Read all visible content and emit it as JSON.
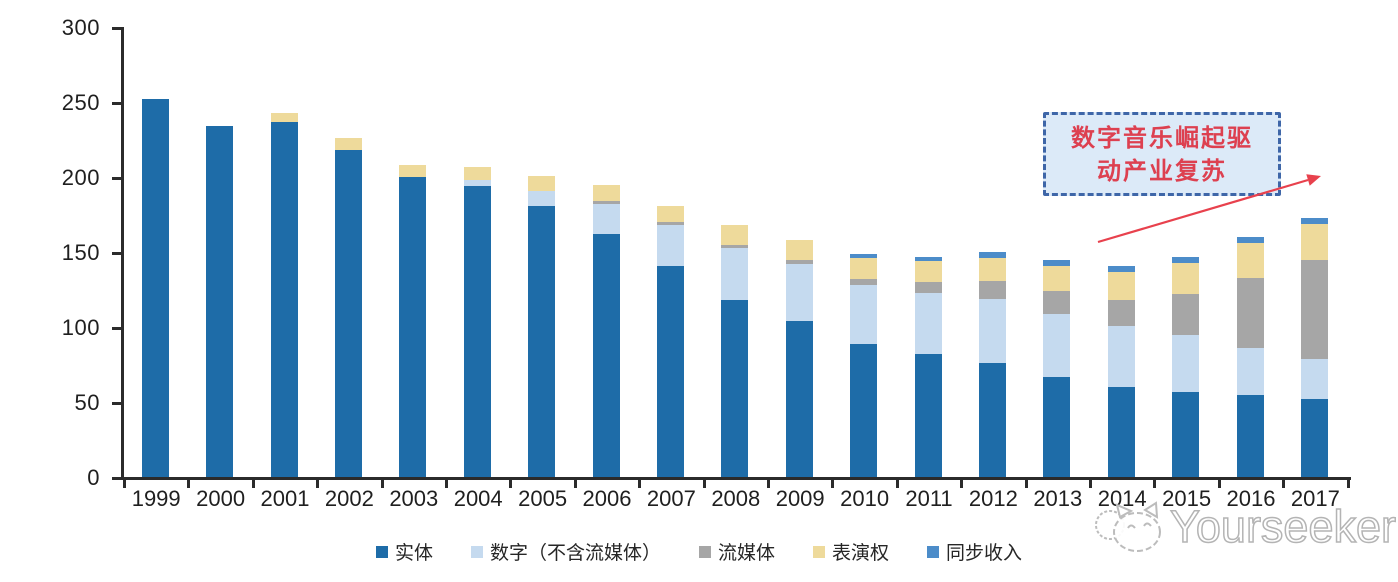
{
  "chart_data": {
    "type": "bar",
    "stacked": true,
    "title": "",
    "xlabel": "",
    "ylabel": "",
    "ylim": [
      0,
      300
    ],
    "yticks": [
      0,
      50,
      100,
      150,
      200,
      250,
      300
    ],
    "grid": false,
    "legend_position": "bottom",
    "categories": [
      "1999",
      "2000",
      "2001",
      "2002",
      "2003",
      "2004",
      "2005",
      "2006",
      "2007",
      "2008",
      "2009",
      "2010",
      "2011",
      "2012",
      "2013",
      "2014",
      "2015",
      "2016",
      "2017"
    ],
    "series": [
      {
        "name": "实体",
        "color": "#1e6ca8",
        "values": [
          252,
          234,
          237,
          218,
          200,
          194,
          181,
          162,
          141,
          118,
          104,
          89,
          82,
          76,
          67,
          60,
          57,
          55,
          52
        ]
      },
      {
        "name": "数字（不含流媒体）",
        "color": "#c5daef",
        "values": [
          0,
          0,
          0,
          0,
          0,
          4,
          10,
          20,
          27,
          35,
          38,
          39,
          41,
          43,
          42,
          41,
          38,
          31,
          27
        ]
      },
      {
        "name": "流媒体",
        "color": "#a6a6a6",
        "values": [
          0,
          0,
          0,
          0,
          0,
          0,
          0,
          2,
          2,
          2,
          3,
          4,
          7,
          12,
          15,
          17,
          27,
          47,
          66
        ]
      },
      {
        "name": "表演权",
        "color": "#eeda9b",
        "values": [
          0,
          0,
          6,
          8,
          8,
          9,
          10,
          11,
          11,
          13,
          13,
          14,
          14,
          15,
          17,
          19,
          21,
          23,
          24
        ]
      },
      {
        "name": "同步收入",
        "color": "#4c8cc9",
        "values": [
          0,
          0,
          0,
          0,
          0,
          0,
          0,
          0,
          0,
          0,
          0,
          3,
          3,
          4,
          4,
          4,
          4,
          4,
          4
        ]
      }
    ]
  },
  "annotation": {
    "line1": "数字音乐崛起驱",
    "line2": "动产业复苏",
    "text_color": "#dd4050",
    "arrow_color": "#e8414d"
  },
  "watermark": {
    "text": "Yourseeker",
    "icon": "cat-logo"
  },
  "colors": {
    "axis": "#2b2b2b",
    "label": "#1f1f1f",
    "callout_bg": "#dceaf8",
    "callout_border": "#3e66a8"
  }
}
